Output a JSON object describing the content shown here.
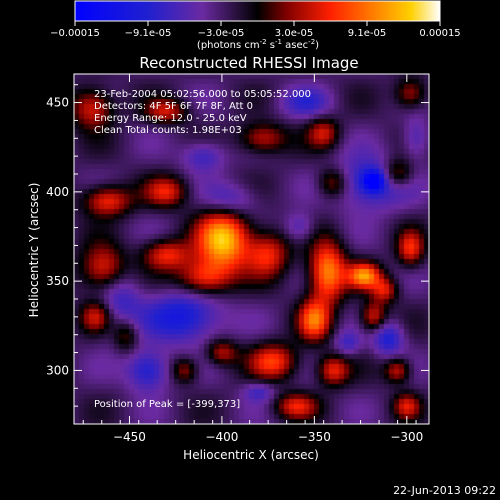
{
  "chart_data": {
    "type": "heatmap",
    "title": "Reconstructed RHESSI Image",
    "xlabel": "Heliocentric X (arcsec)",
    "ylabel": "Heliocentric Y (arcsec)",
    "xlim": [
      -480,
      -288
    ],
    "ylim": [
      270,
      466
    ],
    "xticks": [
      -450,
      -400,
      -350,
      -300
    ],
    "yticks": [
      300,
      350,
      400,
      450
    ],
    "colorbar": {
      "range": [
        -0.00015,
        0.00015
      ],
      "ticks": [
        "-0.00015",
        "-9.1e-05",
        "-3.0e-05",
        "3.0e-05",
        "9.1e-05",
        "0.00015"
      ],
      "label": "(photons cm",
      "label_sup1": "-2",
      "label_mid": " s",
      "label_sup2": "-1",
      "label_mid2": " asec",
      "label_sup3": "-2",
      "label_end": ")"
    },
    "info_lines": [
      "23-Feb-2004 05:02:56.000 to 05:05:52.000",
      "Detectors: 4F 5F 6F 7F 8F, Att 0",
      "Energy Range: 12.0 - 25.0 keV",
      "Clean     Total counts: 1.98E+03"
    ],
    "peak_text": "Position of Peak = [-399,373]",
    "peak": [
      -399,
      373
    ],
    "blobs": [
      {
        "x": -399,
        "y": 373,
        "sx": 10,
        "sy": 12,
        "a": 1.0
      },
      {
        "x": -375,
        "y": 365,
        "sx": 8,
        "sy": 9,
        "a": 0.55
      },
      {
        "x": -410,
        "y": 352,
        "sx": 10,
        "sy": 7,
        "a": 0.6
      },
      {
        "x": -343,
        "y": 355,
        "sx": 7,
        "sy": 12,
        "a": 0.85
      },
      {
        "x": -350,
        "y": 328,
        "sx": 6,
        "sy": 8,
        "a": 0.7
      },
      {
        "x": -323,
        "y": 353,
        "sx": 6,
        "sy": 5,
        "a": 0.8
      },
      {
        "x": -312,
        "y": 345,
        "sx": 5,
        "sy": 5,
        "a": 0.5
      },
      {
        "x": -298,
        "y": 368,
        "sx": 5,
        "sy": 7,
        "a": 0.55
      },
      {
        "x": -318,
        "y": 330,
        "sx": 5,
        "sy": 6,
        "a": 0.55
      },
      {
        "x": -372,
        "y": 305,
        "sx": 9,
        "sy": 7,
        "a": 0.6
      },
      {
        "x": -340,
        "y": 300,
        "sx": 6,
        "sy": 6,
        "a": 0.55
      },
      {
        "x": -305,
        "y": 300,
        "sx": 5,
        "sy": 5,
        "a": 0.5
      },
      {
        "x": -300,
        "y": 280,
        "sx": 5,
        "sy": 5,
        "a": 0.45
      },
      {
        "x": -360,
        "y": 280,
        "sx": 8,
        "sy": 5,
        "a": 0.5
      },
      {
        "x": -430,
        "y": 365,
        "sx": 9,
        "sy": 6,
        "a": 0.55
      },
      {
        "x": -463,
        "y": 357,
        "sx": 9,
        "sy": 9,
        "a": 0.65
      },
      {
        "x": -468,
        "y": 330,
        "sx": 6,
        "sy": 6,
        "a": 0.45
      },
      {
        "x": -452,
        "y": 320,
        "sx": 5,
        "sy": 7,
        "a": 0.4
      },
      {
        "x": -462,
        "y": 395,
        "sx": 9,
        "sy": 6,
        "a": 0.6
      },
      {
        "x": -430,
        "y": 400,
        "sx": 8,
        "sy": 6,
        "a": 0.5
      },
      {
        "x": -470,
        "y": 447,
        "sx": 8,
        "sy": 8,
        "a": 0.55
      },
      {
        "x": -430,
        "y": 445,
        "sx": 8,
        "sy": 5,
        "a": 0.45
      },
      {
        "x": -378,
        "y": 430,
        "sx": 9,
        "sy": 6,
        "a": 0.5
      },
      {
        "x": -345,
        "y": 433,
        "sx": 6,
        "sy": 6,
        "a": 0.45
      },
      {
        "x": -340,
        "y": 405,
        "sx": 6,
        "sy": 6,
        "a": 0.45
      },
      {
        "x": -305,
        "y": 410,
        "sx": 6,
        "sy": 6,
        "a": 0.5
      },
      {
        "x": -298,
        "y": 455,
        "sx": 6,
        "sy": 6,
        "a": 0.45
      },
      {
        "x": -400,
        "y": 310,
        "sx": 6,
        "sy": 5,
        "a": 0.45
      },
      {
        "x": -420,
        "y": 300,
        "sx": 5,
        "sy": 5,
        "a": 0.4
      },
      {
        "x": -420,
        "y": 330,
        "sx": 14,
        "sy": 10,
        "a": -0.55
      },
      {
        "x": -455,
        "y": 340,
        "sx": 8,
        "sy": 16,
        "a": -0.35
      },
      {
        "x": -440,
        "y": 300,
        "sx": 8,
        "sy": 8,
        "a": -0.5
      },
      {
        "x": -395,
        "y": 395,
        "sx": 10,
        "sy": 7,
        "a": -0.35
      },
      {
        "x": -410,
        "y": 420,
        "sx": 8,
        "sy": 6,
        "a": -0.35
      },
      {
        "x": -320,
        "y": 405,
        "sx": 14,
        "sy": 10,
        "a": -0.5
      },
      {
        "x": -318,
        "y": 406,
        "sx": 4,
        "sy": 4,
        "a": -0.65
      },
      {
        "x": -358,
        "y": 380,
        "sx": 6,
        "sy": 6,
        "a": -0.3
      },
      {
        "x": -310,
        "y": 318,
        "sx": 6,
        "sy": 7,
        "a": -0.45
      },
      {
        "x": -332,
        "y": 315,
        "sx": 5,
        "sy": 5,
        "a": -0.3
      },
      {
        "x": -355,
        "y": 450,
        "sx": 10,
        "sy": 6,
        "a": -0.3
      },
      {
        "x": -295,
        "y": 430,
        "sx": 5,
        "sy": 8,
        "a": -0.3
      },
      {
        "x": -380,
        "y": 288,
        "sx": 6,
        "sy": 4,
        "a": -0.3
      }
    ]
  },
  "footer": {
    "timestamp": "22-Jun-2013 09:22"
  }
}
